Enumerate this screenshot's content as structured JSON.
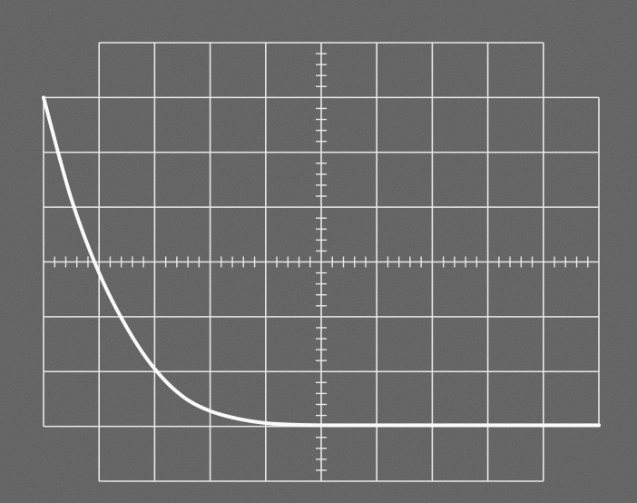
{
  "chart_data": {
    "type": "line",
    "title": "",
    "xlabel": "",
    "ylabel": "",
    "grid": true,
    "x_divisions": 10,
    "y_divisions": 8,
    "xlim": [
      -5,
      5
    ],
    "ylim": [
      -4,
      4
    ],
    "series": [
      {
        "x": [
          -5.0,
          -4.5,
          -4.0,
          -3.5,
          -3.0,
          -2.5,
          -2.0,
          -1.5,
          -1.0,
          -0.5,
          0.0,
          1.0,
          2.0,
          3.0,
          4.0,
          5.0
        ],
        "y": [
          3.0,
          1.15,
          -0.2,
          -1.2,
          -1.95,
          -2.45,
          -2.72,
          -2.86,
          -2.94,
          -2.97,
          -2.98,
          -2.98,
          -2.98,
          -2.98,
          -2.98,
          -2.98
        ]
      }
    ]
  },
  "colors": {
    "screen": "#5c5c5c",
    "graticule": "#e8e8e8",
    "trace": "#fafafa"
  }
}
